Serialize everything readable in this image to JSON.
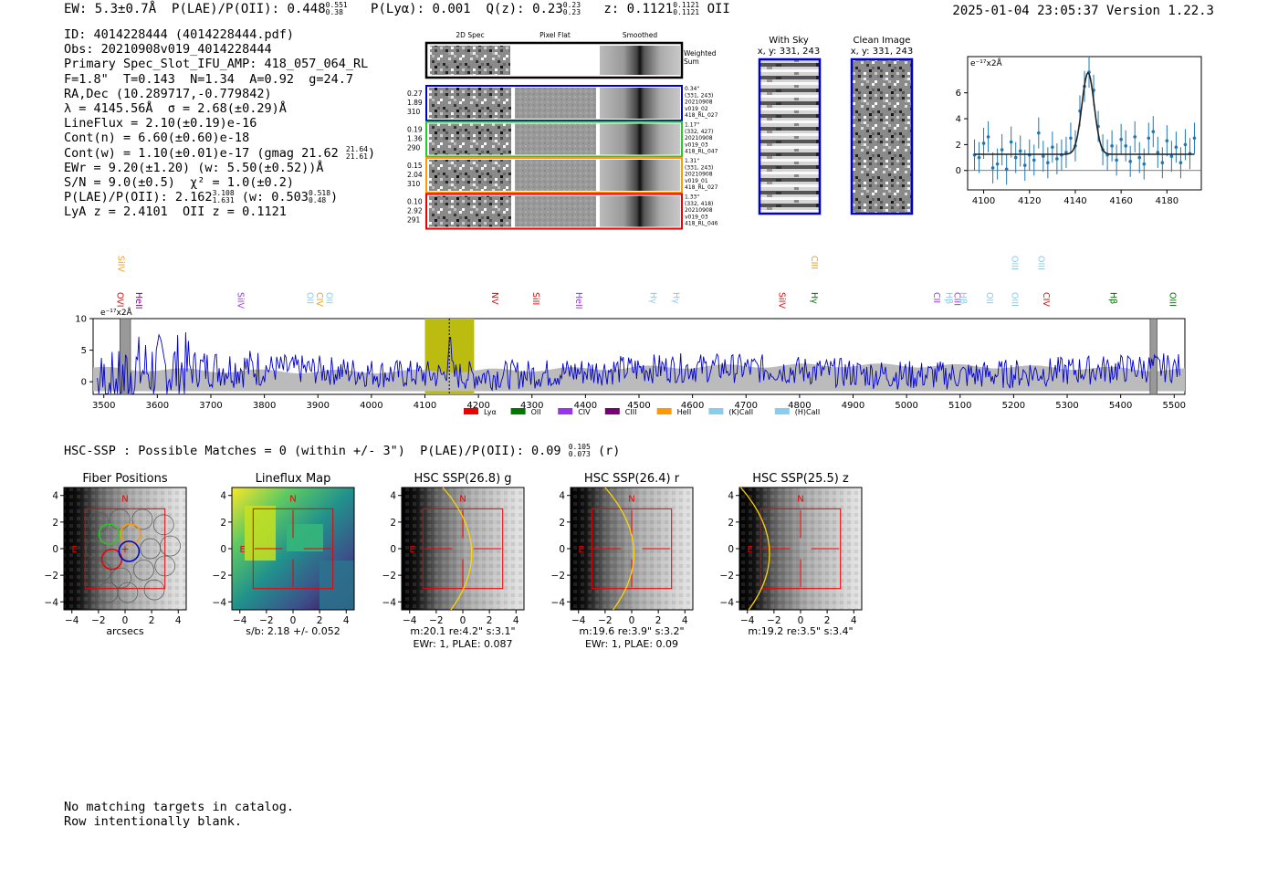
{
  "header": {
    "ew_label": "EW:",
    "ew_value": "5.3±0.7Å",
    "plae_label": "P(LAE)/P(OII):",
    "plae_value": "0.448",
    "plae_hi": "0.551",
    "plae_lo": "0.38",
    "plya_text": "P(Lyα): 0.001",
    "qz_label": "Q(z):",
    "qz_value": "0.23",
    "qz_hi": "0.23",
    "qz_lo": "0.23",
    "z_label": "z:",
    "z_value": "0.1121",
    "z_hi": "0.1121",
    "z_lo": "0.1121",
    "z_line": "OII",
    "datetime": "2025-01-04 23:05:37",
    "version": "Version 1.22.3"
  },
  "info": {
    "id_line": "ID: 4014228444 (4014228444.pdf)",
    "obs_line": "Obs: 20210908v019_4014228444",
    "primary_line": "Primary Spec_Slot_IFU_AMP: 418_057_064_RL",
    "f_line": "F=1.8\"  T=0.143  N=1.34  A=0.92  g=24.7",
    "radec_line": "RA,Dec (10.289717,-0.779842)",
    "lambda_line": "λ = 4145.56Å  σ = 2.68(±0.29)Å",
    "lineflux_line": "LineFlux = 2.10(±0.19)e-16",
    "contn_line": "Cont(n) = 6.60(±0.60)e-18",
    "contw_line": "Cont(w) = 1.10(±0.01)e-17 (gmag 21.62",
    "contw_hi": "21.64",
    "contw_lo": "21.61",
    "contw_close": ")",
    "ewr_line": "EWr = 9.20(±1.20) (w: 5.50(±0.52))Å",
    "sn_line": "S/N = 9.0(±0.5)  χ² = 1.0(±0.2)",
    "plae_line": "P(LAE)/P(OII): 2.162",
    "plae_hi": "3.108",
    "plae_lo": "1.631",
    "plae_mid": " (w: 0.503",
    "plae_w_hi": "0.518",
    "plae_w_lo": "0.48",
    "plae_close": ")",
    "z_line": "LyA z = 2.4101  OII z = 0.1121"
  },
  "cutouts": {
    "col_2d": "2D Spec",
    "col_flat": "Pixel Flat",
    "col_smooth": "Smoothed",
    "weighted": "Weighted",
    "sum": "Sum",
    "rows": [
      {
        "color": "#0000cc",
        "l1": "0.27",
        "l2": "1.89",
        "l3": "310",
        "r1": "0.34\"",
        "r2": "(331, 243)",
        "r3": "20210908",
        "r4": "v019_02",
        "r5": "418_RL_027"
      },
      {
        "color": "#22cc22",
        "l1": "0.19",
        "l2": "1.36",
        "l3": "290",
        "r1": "1.17\"",
        "r2": "(332, 427)",
        "r3": "20210908",
        "r4": "v019_03",
        "r5": "418_RL_047"
      },
      {
        "color": "#ff9900",
        "l1": "0.15",
        "l2": "2.04",
        "l3": "310",
        "r1": "1.31\"",
        "r2": "(331, 243)",
        "r3": "20210908",
        "r4": "v019_01",
        "r5": "418_RL_027"
      },
      {
        "color": "#ee0000",
        "l1": "0.10",
        "l2": "2.92",
        "l3": "291",
        "r1": "1.33\"",
        "r2": "(332, 418)",
        "r3": "20210908",
        "r4": "v019_03",
        "r5": "418_RL_046"
      }
    ]
  },
  "sky_panels": {
    "with_sky_title": "With Sky",
    "with_sky_xy": "x, y: 331, 243",
    "clean_title": "Clean Image",
    "clean_xy": "x, y: 331, 243"
  },
  "chart_data": [
    {
      "name": "zoom_line_fit",
      "type": "scatter",
      "unit_label": "e⁻¹⁷x2Å",
      "xlim": [
        4093,
        4195
      ],
      "ylim": [
        -1.5,
        8.8
      ],
      "xticks": [
        "4100",
        "4120",
        "4140",
        "4160",
        "4180"
      ],
      "yticks": [
        "0",
        "2",
        "4",
        "6"
      ],
      "x": [
        4096,
        4098,
        4100,
        4102,
        4104,
        4106,
        4108,
        4110,
        4112,
        4114,
        4116,
        4118,
        4120,
        4122,
        4124,
        4126,
        4128,
        4130,
        4132,
        4134,
        4136,
        4138,
        4140,
        4142,
        4144,
        4146,
        4148,
        4150,
        4152,
        4154,
        4156,
        4158,
        4160,
        4162,
        4164,
        4166,
        4168,
        4170,
        4172,
        4174,
        4176,
        4178,
        4180,
        4182,
        4184,
        4186,
        4188,
        4190,
        4192
      ],
      "y": [
        1.2,
        1.0,
        2.1,
        2.6,
        0.2,
        0.5,
        1.6,
        0.1,
        2.2,
        1.0,
        1.5,
        0.4,
        1.2,
        0.8,
        2.9,
        1.1,
        0.6,
        1.8,
        0.9,
        1.2,
        1.4,
        2.5,
        1.9,
        4.6,
        6.5,
        7.6,
        6.2,
        3.4,
        1.6,
        1.2,
        1.9,
        0.8,
        2.4,
        1.9,
        0.7,
        2.6,
        1.0,
        0.5,
        2.5,
        3.0,
        1.4,
        0.6,
        2.3,
        1.1,
        1.8,
        0.6,
        2.0,
        1.3,
        2.5
      ],
      "yerr": 1.2,
      "fit": {
        "center": 4145.56,
        "sigma": 2.68,
        "amplitude": 6.3,
        "continuum": 1.25
      }
    },
    {
      "name": "full_spectrum",
      "type": "line",
      "unit_label": "e⁻¹⁷x2Å",
      "xlim": [
        3480,
        5520
      ],
      "ylim": [
        -2,
        10
      ],
      "xticks": [
        "3500",
        "3600",
        "3700",
        "3800",
        "3900",
        "4000",
        "4100",
        "4200",
        "4300",
        "4400",
        "4500",
        "4600",
        "4700",
        "4800",
        "4900",
        "5000",
        "5100",
        "5200",
        "5300",
        "5400",
        "5500"
      ],
      "yticks": [
        "0",
        "5",
        "10"
      ],
      "highlight": [
        4100,
        4192
      ],
      "line_center": 4145.56,
      "masked": [
        [
          3530,
          3550
        ],
        [
          5455,
          5468
        ]
      ],
      "series_color": "#0000cc",
      "error_color": "#bbbbbb",
      "line_markers": [
        {
          "label": "SiIV",
          "x": 3527,
          "row": "top",
          "color": "#ff9900"
        },
        {
          "label": "OVI",
          "x": 3525,
          "row": "low",
          "color": "#ee0000"
        },
        {
          "label": "HeII",
          "x": 3560,
          "row": "low",
          "color": "#880088"
        },
        {
          "label": "SiIV",
          "x": 3750,
          "row": "low",
          "color": "#9933ee"
        },
        {
          "label": "OII",
          "x": 3880,
          "row": "low",
          "color": "#88ccee"
        },
        {
          "label": "CIV",
          "x": 3898,
          "row": "low",
          "color": "#ff9900"
        },
        {
          "label": "OII",
          "x": 3916,
          "row": "low",
          "color": "#88ccee"
        },
        {
          "label": "NV",
          "x": 4225,
          "row": "low",
          "color": "#ee0000"
        },
        {
          "label": "SiII",
          "x": 4302,
          "row": "low",
          "color": "#ee0000"
        },
        {
          "label": "HeII",
          "x": 4382,
          "row": "low",
          "color": "#9933ee"
        },
        {
          "label": "Hγ",
          "x": 4521,
          "row": "low",
          "color": "#88ccee"
        },
        {
          "label": "Hγ",
          "x": 4564,
          "row": "low",
          "color": "#88ccee"
        },
        {
          "label": "SiIV",
          "x": 4762,
          "row": "low",
          "color": "#ee0000"
        },
        {
          "label": "CIII",
          "x": 4822,
          "row": "top",
          "color": "#ff9900"
        },
        {
          "label": "Hγ",
          "x": 4822,
          "row": "low",
          "color": "#007700"
        },
        {
          "label": "CII",
          "x": 5051,
          "row": "low",
          "color": "#9933ee"
        },
        {
          "label": "Hβ",
          "x": 5074,
          "row": "low",
          "color": "#88ccee"
        },
        {
          "label": "CIII",
          "x": 5089,
          "row": "low",
          "color": "#9933ee"
        },
        {
          "label": "Hβ",
          "x": 5100,
          "row": "low",
          "color": "#88ccee"
        },
        {
          "label": "OII",
          "x": 5150,
          "row": "low",
          "color": "#88ccee"
        },
        {
          "label": "OIII",
          "x": 5197,
          "row": "top",
          "color": "#88ccee"
        },
        {
          "label": "OIII",
          "x": 5197,
          "row": "low",
          "color": "#88ccee"
        },
        {
          "label": "OIII",
          "x": 5246,
          "row": "top",
          "color": "#88ccee"
        },
        {
          "label": "CIV",
          "x": 5256,
          "row": "low",
          "color": "#ee0000"
        },
        {
          "label": "Hβ",
          "x": 5381,
          "row": "low",
          "color": "#007700"
        },
        {
          "label": "OIII",
          "x": 5492,
          "row": "low",
          "color": "#007700"
        }
      ],
      "legend": [
        {
          "label": "Lyα",
          "color": "#ee0000"
        },
        {
          "label": "OII",
          "color": "#007700"
        },
        {
          "label": "CIV",
          "color": "#9933ee"
        },
        {
          "label": "CIII",
          "color": "#770077"
        },
        {
          "label": "HeII",
          "color": "#ff9900"
        },
        {
          "label": "(K)CaII",
          "color": "#88ccee"
        },
        {
          "label": "(H)CaII",
          "color": "#88ccee"
        }
      ]
    }
  ],
  "hsc": {
    "line_prefix": "HSC-SSP : Possible Matches = 0 (within +/- 3\")  P(LAE)/P(OII): 0.09",
    "line_hi": "0.105",
    "line_lo": "0.073",
    "line_suffix": "(r)"
  },
  "cutout_panels": {
    "ticks": [
      "−4",
      "−2",
      "0",
      "2",
      "4"
    ],
    "north_label": "N",
    "east_label": "E",
    "panels": [
      {
        "title": "Fiber Positions",
        "caption1": "arcsecs",
        "caption2": ""
      },
      {
        "title": "Lineflux Map",
        "caption1": "s/b: 2.18 +/- 0.052",
        "caption2": ""
      },
      {
        "title": "HSC SSP(26.8) g",
        "caption1": "m:20.1  re:4.2\"  s:3.1\"",
        "caption2": "EWr: 1, PLAE: 0.087"
      },
      {
        "title": "HSC SSP(26.4) r",
        "caption1": "m:19.6  re:3.9\"  s:3.2\"",
        "caption2": "EWr: 1, PLAE: 0.09"
      },
      {
        "title": "HSC SSP(25.5) z",
        "caption1": "m:19.2  re:3.5\"  s:3.4\"",
        "caption2": ""
      }
    ]
  },
  "footer": {
    "line1": "No matching targets in catalog.",
    "line2": "Row intentionally blank."
  }
}
